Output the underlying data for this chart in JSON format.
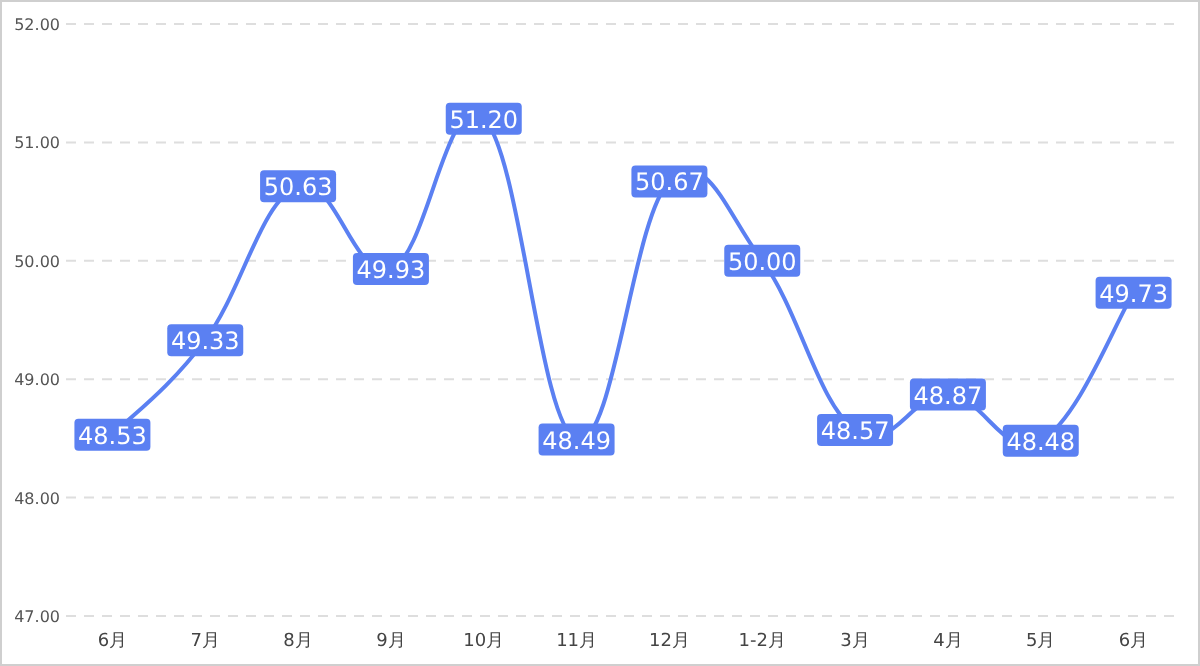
{
  "chart_data": {
    "type": "line",
    "categories": [
      "6月",
      "7月",
      "8月",
      "9月",
      "10月",
      "11月",
      "12月",
      "1-2月",
      "3月",
      "4月",
      "5月",
      "6月"
    ],
    "series": [
      {
        "color": "#5b80f2",
        "values": [
          48.53,
          49.33,
          50.63,
          49.93,
          51.2,
          48.49,
          50.67,
          50.0,
          48.57,
          48.87,
          48.48,
          49.73
        ],
        "value_labels": [
          "48.53",
          "49.33",
          "50.63",
          "49.93",
          "51.20",
          "48.49",
          "50.67",
          "50.00",
          "48.57",
          "48.87",
          "48.48",
          "49.73"
        ]
      }
    ],
    "ylim": [
      47,
      52
    ],
    "yticks": [
      {
        "value": 47,
        "label": "47.00"
      },
      {
        "value": 48,
        "label": "48.00"
      },
      {
        "value": 49,
        "label": "49.00"
      },
      {
        "value": 50,
        "label": "50.00"
      },
      {
        "value": 51,
        "label": "51.00"
      },
      {
        "value": 52,
        "label": "52.00"
      }
    ],
    "grid": "y",
    "marker": "square",
    "line_style": "solid"
  }
}
